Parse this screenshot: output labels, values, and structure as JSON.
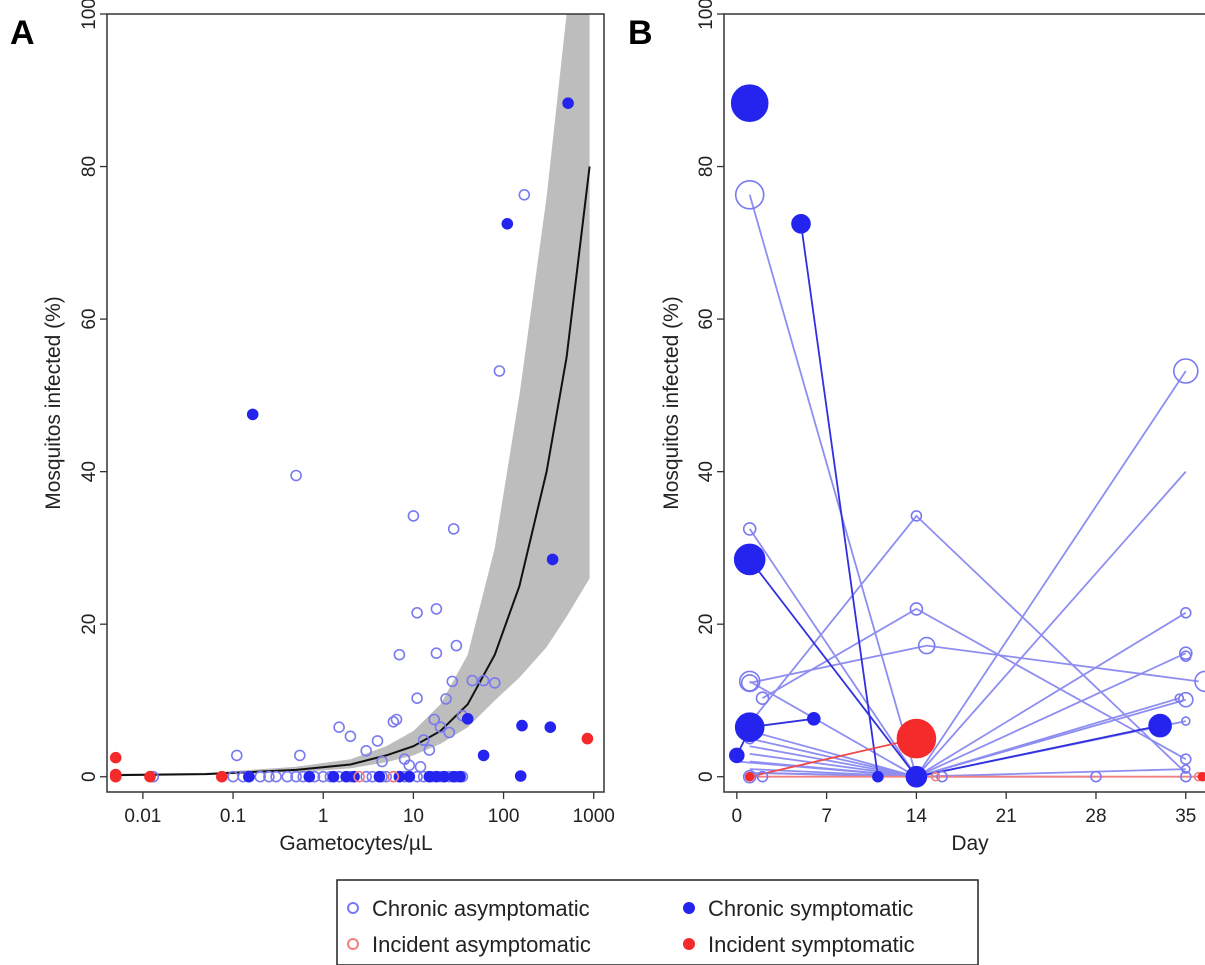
{
  "colors": {
    "chronic_asymptomatic": "#7a7af0",
    "chronic_symptomatic": "#2424ee",
    "incident_asymptomatic": "#f08080",
    "incident_symptomatic": "#f52a2a",
    "line_chronic": "#8e8ef2",
    "line_chronic_dark": "#3030e0",
    "line_incident": "#f04848",
    "ci_band": "#bdbdbd",
    "fit_line": "#111111"
  },
  "panels": {
    "a_letter": "A",
    "b_letter": "B"
  },
  "legend": {
    "chronic_asymptomatic": "Chronic asymptomatic",
    "chronic_symptomatic": "Chronic symptomatic",
    "incident_asymptomatic": "Incident asymptomatic",
    "incident_symptomatic": "Incident symptomatic"
  },
  "chart_data": [
    {
      "type": "scatter",
      "panel": "A",
      "xlabel": "Gametocytes/µL",
      "ylabel": "Mosquitos infected (%)",
      "x_scale": "log",
      "xlim": [
        0.004,
        1300
      ],
      "ylim": [
        -2,
        100
      ],
      "x_ticks": [
        0.01,
        0.1,
        1,
        10,
        100,
        1000
      ],
      "x_tick_labels": [
        "0.01",
        "0.1",
        "1",
        "10",
        "100",
        "1000"
      ],
      "y_ticks": [
        0,
        20,
        40,
        60,
        80,
        100
      ],
      "y_tick_labels": [
        "0",
        "20",
        "40",
        "60",
        "80",
        "100"
      ],
      "grid": false,
      "fit": {
        "x": [
          0.005,
          0.05,
          0.5,
          2,
          5,
          10,
          20,
          40,
          80,
          150,
          300,
          500,
          900
        ],
        "y": [
          0.2,
          0.35,
          0.9,
          1.6,
          2.8,
          4.0,
          6.0,
          9.5,
          16,
          25,
          40,
          55,
          80
        ],
        "ci_lower": [
          0.1,
          0.25,
          0.6,
          1.1,
          1.9,
          2.8,
          4.3,
          6.5,
          10,
          13,
          17,
          21,
          26
        ],
        "ci_upper": [
          0.4,
          0.5,
          1.3,
          2.3,
          4.0,
          6.0,
          9.5,
          16,
          30,
          50,
          76,
          100,
          100
        ]
      },
      "series": [
        {
          "name": "Chronic asymptomatic",
          "points": [
            [
              0.11,
              2.8
            ],
            [
              0.5,
              39.5
            ],
            [
              0.55,
              2.8
            ],
            [
              1.5,
              6.5
            ],
            [
              2,
              5.3
            ],
            [
              4,
              4.7
            ],
            [
              6,
              7.2
            ],
            [
              6.5,
              7.5
            ],
            [
              7,
              16
            ],
            [
              8,
              2.3
            ],
            [
              10,
              34.2
            ],
            [
              11,
              21.5
            ],
            [
              11,
              10.3
            ],
            [
              13,
              4.8
            ],
            [
              17,
              7.5
            ],
            [
              18,
              22
            ],
            [
              18,
              16.2
            ],
            [
              20,
              6.5
            ],
            [
              23,
              10.2
            ],
            [
              25,
              5.8
            ],
            [
              27,
              12.5
            ],
            [
              28,
              32.5
            ],
            [
              30,
              17.2
            ],
            [
              45,
              12.6
            ],
            [
              60,
              12.6
            ],
            [
              80,
              12.3
            ],
            [
              90,
              53.2
            ],
            [
              170,
              76.3
            ],
            [
              3,
              3.4
            ],
            [
              4.5,
              2
            ],
            [
              9,
              1.5
            ],
            [
              12,
              1.3
            ],
            [
              15,
              3.5
            ],
            [
              35,
              8
            ],
            [
              0.013,
              0
            ],
            [
              0.1,
              0
            ],
            [
              0.13,
              0
            ],
            [
              0.15,
              0
            ],
            [
              0.2,
              0
            ],
            [
              0.25,
              0
            ],
            [
              0.3,
              0
            ],
            [
              0.4,
              0
            ],
            [
              0.5,
              0
            ],
            [
              0.6,
              0
            ],
            [
              0.8,
              0
            ],
            [
              1.0,
              0
            ],
            [
              1.2,
              0
            ],
            [
              1.5,
              0
            ],
            [
              2,
              0
            ],
            [
              3,
              0
            ],
            [
              3.5,
              0
            ],
            [
              4.5,
              0
            ],
            [
              5,
              0
            ],
            [
              6,
              0
            ],
            [
              8,
              0
            ],
            [
              9,
              0
            ],
            [
              11,
              0
            ],
            [
              13,
              0
            ],
            [
              16,
              0
            ],
            [
              20,
              0
            ],
            [
              25,
              0
            ],
            [
              30,
              0
            ],
            [
              35,
              0
            ]
          ]
        },
        {
          "name": "Chronic symptomatic",
          "points": [
            [
              0.165,
              47.5
            ],
            [
              110,
              72.5
            ],
            [
              350,
              28.5
            ],
            [
              520,
              88.3
            ],
            [
              40,
              7.6
            ],
            [
              60,
              2.8
            ],
            [
              160,
              6.7
            ],
            [
              330,
              6.5
            ],
            [
              155,
              0.1
            ],
            [
              0.15,
              0
            ],
            [
              0.7,
              0
            ],
            [
              1.3,
              0
            ],
            [
              1.8,
              0
            ],
            [
              2.2,
              0
            ],
            [
              4.2,
              0
            ],
            [
              7,
              0
            ],
            [
              9,
              0
            ],
            [
              15,
              0
            ],
            [
              18,
              0
            ],
            [
              22,
              0
            ],
            [
              28,
              0
            ],
            [
              33,
              0
            ]
          ]
        },
        {
          "name": "Incident asymptomatic",
          "points": [
            [
              2.5,
              0
            ],
            [
              6.0,
              0
            ]
          ]
        },
        {
          "name": "Incident symptomatic",
          "points": [
            [
              0.005,
              2.5
            ],
            [
              0.005,
              0.3
            ],
            [
              0.005,
              0
            ],
            [
              0.012,
              0
            ],
            [
              0.075,
              0
            ],
            [
              850,
              5.0
            ]
          ]
        }
      ]
    },
    {
      "type": "line",
      "panel": "B",
      "xlabel": "Day",
      "ylabel": "Mosquitos infected (%)",
      "xlim": [
        -1,
        36.5
      ],
      "ylim": [
        -2,
        100
      ],
      "x_ticks": [
        0,
        7,
        14,
        21,
        28,
        35
      ],
      "x_tick_labels": [
        "0",
        "7",
        "14",
        "21",
        "28",
        "35"
      ],
      "y_ticks": [
        0,
        20,
        40,
        60,
        80,
        100
      ],
      "y_tick_labels": [
        "0",
        "20",
        "40",
        "60",
        "80",
        "100"
      ],
      "grid": false,
      "trajectories": [
        {
          "group": "Chronic asymptomatic",
          "points": [
            [
              1,
              76.3
            ],
            [
              14,
              0
            ]
          ]
        },
        {
          "group": "Chronic asymptomatic",
          "points": [
            [
              1,
              12.5
            ],
            [
              14,
              0
            ]
          ]
        },
        {
          "group": "Chronic asymptomatic",
          "points": [
            [
              1,
              12.3
            ],
            [
              14.8,
              17.2
            ],
            [
              36,
              12.5
            ]
          ]
        },
        {
          "group": "Chronic asymptomatic",
          "points": [
            [
              2,
              10.3
            ],
            [
              14,
              22
            ],
            [
              35,
              2.3
            ]
          ]
        },
        {
          "group": "Chronic asymptomatic",
          "points": [
            [
              1,
              32.5
            ],
            [
              14,
              0
            ]
          ]
        },
        {
          "group": "Chronic asymptomatic",
          "points": [
            [
              1,
              7
            ],
            [
              14,
              34.2
            ],
            [
              35,
              0.5
            ]
          ]
        },
        {
          "group": "Chronic asymptomatic",
          "points": [
            [
              1,
              6
            ],
            [
              14,
              0
            ],
            [
              35,
              53.2
            ]
          ]
        },
        {
          "group": "Chronic asymptomatic",
          "points": [
            [
              1,
              5
            ],
            [
              14,
              0
            ],
            [
              35,
              40
            ]
          ]
        },
        {
          "group": "Chronic asymptomatic",
          "points": [
            [
              1,
              4
            ],
            [
              14,
              0
            ],
            [
              35,
              21.5
            ]
          ]
        },
        {
          "group": "Chronic asymptomatic",
          "points": [
            [
              1,
              3
            ],
            [
              14,
              0
            ],
            [
              35,
              16.2
            ]
          ]
        },
        {
          "group": "Chronic asymptomatic",
          "points": [
            [
              1,
              2
            ],
            [
              14,
              0
            ],
            [
              35,
              10.1
            ]
          ]
        },
        {
          "group": "Chronic asymptomatic",
          "points": [
            [
              2,
              0.5
            ],
            [
              14,
              0
            ],
            [
              35,
              7.3
            ]
          ]
        },
        {
          "group": "Chronic asymptomatic",
          "points": [
            [
              1,
              0.5
            ],
            [
              14,
              0
            ],
            [
              34.5,
              10.3
            ]
          ]
        },
        {
          "group": "Chronic asymptomatic",
          "points": [
            [
              0,
              2
            ],
            [
              14,
              0
            ],
            [
              35,
              1
            ]
          ]
        },
        {
          "group": "Chronic asymptomatic",
          "points": [
            [
              1,
              1
            ],
            [
              14,
              0
            ],
            [
              28,
              0
            ]
          ]
        },
        {
          "group": "Chronic symptomatic",
          "points": [
            [
              5,
              72.5
            ],
            [
              11,
              0
            ]
          ]
        },
        {
          "group": "Chronic symptomatic",
          "points": [
            [
              1,
              28.5
            ],
            [
              14,
              0
            ]
          ]
        },
        {
          "group": "Chronic symptomatic",
          "points": [
            [
              1,
              6.5
            ],
            [
              6,
              7.6
            ]
          ]
        },
        {
          "group": "Chronic symptomatic",
          "points": [
            [
              0,
              2.8
            ],
            [
              1,
              6.2
            ]
          ]
        },
        {
          "group": "Chronic symptomatic",
          "points": [
            [
              33,
              6.7
            ],
            [
              14,
              0
            ]
          ]
        },
        {
          "group": "Incident symptomatic",
          "points": [
            [
              1,
              0
            ],
            [
              14,
              5.0
            ]
          ]
        },
        {
          "group": "Incident asymptomatic",
          "points": [
            [
              1,
              0
            ],
            [
              36.5,
              0
            ]
          ]
        }
      ],
      "series": [
        {
          "name": "Chronic asymptomatic",
          "points": [
            [
              1,
              76.3,
              14
            ],
            [
              1,
              32.5,
              6
            ],
            [
              1,
              12.5,
              10
            ],
            [
              1,
              12.3,
              8
            ],
            [
              2,
              10.3,
              6
            ],
            [
              1,
              7,
              5
            ],
            [
              1,
              6,
              5
            ],
            [
              1,
              5,
              5
            ],
            [
              14,
              34.2,
              5
            ],
            [
              14,
              22,
              6
            ],
            [
              14.8,
              17.2,
              8
            ],
            [
              35,
              53.2,
              12
            ],
            [
              35,
              21.5,
              5
            ],
            [
              35,
              16.2,
              6
            ],
            [
              35,
              15.8,
              5
            ],
            [
              35,
              10.1,
              7
            ],
            [
              34.5,
              10.3,
              4
            ],
            [
              35,
              7.3,
              4
            ],
            [
              35,
              2.3,
              5
            ],
            [
              35,
              1.0,
              4
            ],
            [
              36.5,
              12.5,
              10
            ],
            [
              1,
              0,
              6
            ],
            [
              2,
              0,
              5
            ],
            [
              14,
              0,
              5
            ],
            [
              16,
              0,
              5
            ],
            [
              28,
              0,
              5
            ],
            [
              35,
              0,
              5
            ]
          ]
        },
        {
          "name": "Chronic symptomatic",
          "points": [
            [
              1,
              88.3,
              18
            ],
            [
              5,
              72.5,
              9
            ],
            [
              1,
              28.5,
              15
            ],
            [
              1,
              6.5,
              14
            ],
            [
              6,
              7.6,
              6
            ],
            [
              0,
              2.8,
              7
            ],
            [
              33,
              6.7,
              11
            ],
            [
              14,
              0,
              10
            ],
            [
              11,
              0,
              5
            ]
          ]
        },
        {
          "name": "Incident asymptomatic",
          "points": [
            [
              15.5,
              0,
              4
            ],
            [
              36,
              0,
              4
            ]
          ]
        },
        {
          "name": "Incident symptomatic",
          "points": [
            [
              14,
              5.0,
              19
            ],
            [
              1,
              0,
              4
            ],
            [
              36.3,
              0,
              4
            ]
          ]
        }
      ]
    }
  ]
}
